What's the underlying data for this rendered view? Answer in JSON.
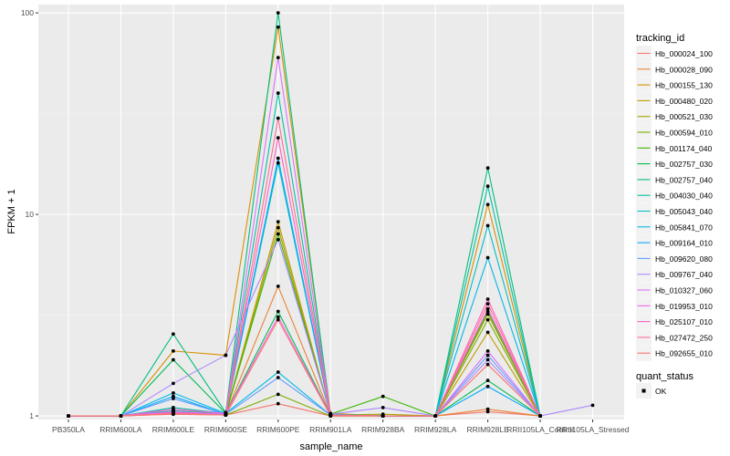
{
  "chart_data": {
    "type": "line",
    "xlabel": "sample_name",
    "ylabel": "FPKM + 1",
    "y_scale": "log10",
    "ylim": [
      0.96,
      110
    ],
    "y_ticks": [
      1,
      10,
      100
    ],
    "y_tick_labels": [
      "1",
      "10",
      "100"
    ],
    "grid": true,
    "legend_placement": "right",
    "categories": [
      "PB350LA",
      "RRIM600LA",
      "RRIM600LE",
      "RRIM600SE",
      "RRIM600PE",
      "RRIM901LA",
      "RRIM928BA",
      "RRIM928LA",
      "RRIM928LE",
      "RRII105LA_Control",
      "RRII105LA_Stressed"
    ],
    "series": [
      {
        "name": "Hb_000024_100",
        "color": "#F8766D",
        "values": [
          1,
          1,
          1.02,
          1.01,
          1.15,
          1,
          1,
          1,
          1.05,
          1,
          null
        ]
      },
      {
        "name": "Hb_000028_090",
        "color": "#EA8331",
        "values": [
          1,
          1,
          1.04,
          1.02,
          4.4,
          1.01,
          1,
          1,
          1.08,
          1,
          null
        ]
      },
      {
        "name": "Hb_000155_130",
        "color": "#D89000",
        "values": [
          1,
          1,
          2.1,
          2.0,
          85,
          1.03,
          1,
          1,
          11.2,
          1,
          null
        ]
      },
      {
        "name": "Hb_000480_020",
        "color": "#C09B00",
        "values": [
          1,
          1,
          1.05,
          1.02,
          9.2,
          1.01,
          1,
          1,
          2.6,
          1,
          null
        ]
      },
      {
        "name": "Hb_000521_030",
        "color": "#A3A500",
        "values": [
          1,
          1,
          1.08,
          1.02,
          8.6,
          1.01,
          1.02,
          1,
          3.2,
          1,
          null
        ]
      },
      {
        "name": "Hb_000594_010",
        "color": "#7CAE00",
        "values": [
          1,
          1,
          1.03,
          1.01,
          1.28,
          1,
          1,
          1,
          3.0,
          1,
          null
        ]
      },
      {
        "name": "Hb_001174_040",
        "color": "#39B600",
        "values": [
          1,
          1,
          1.06,
          1.02,
          8.0,
          1.02,
          1.25,
          1,
          3.3,
          1,
          null
        ]
      },
      {
        "name": "Hb_002757_030",
        "color": "#00BB4E",
        "values": [
          1,
          1,
          1.9,
          1.03,
          3.3,
          1.01,
          1,
          1,
          1.5,
          1,
          null
        ]
      },
      {
        "name": "Hb_002757_040",
        "color": "#00BF7D",
        "values": [
          1,
          1,
          2.55,
          1.04,
          100,
          1.01,
          1,
          1,
          17.0,
          1,
          null
        ]
      },
      {
        "name": "Hb_004030_040",
        "color": "#00C1A3",
        "values": [
          1,
          1,
          1.1,
          1.03,
          40,
          1.02,
          1,
          1,
          13.8,
          1,
          null
        ]
      },
      {
        "name": "Hb_005043_040",
        "color": "#00BFC4",
        "values": [
          1,
          1,
          1.06,
          1.02,
          18,
          1.01,
          1,
          1,
          8.8,
          1,
          null
        ]
      },
      {
        "name": "Hb_005841_070",
        "color": "#00B8E7",
        "values": [
          1,
          1,
          1.3,
          1.03,
          1.65,
          1.01,
          1,
          1,
          6.1,
          1,
          null
        ]
      },
      {
        "name": "Hb_009164_010",
        "color": "#00A9FF",
        "values": [
          1,
          1,
          1.25,
          1.02,
          19,
          1.01,
          1,
          1,
          1.4,
          1,
          null
        ]
      },
      {
        "name": "Hb_009620_080",
        "color": "#619CFF",
        "values": [
          1,
          1,
          1.22,
          1.02,
          1.55,
          1.01,
          1,
          1,
          2.0,
          1,
          null
        ]
      },
      {
        "name": "Hb_009767_040",
        "color": "#AE87FF",
        "values": [
          1,
          1,
          1.45,
          2.0,
          7.5,
          1.02,
          1.1,
          1,
          1.9,
          1,
          1.13
        ]
      },
      {
        "name": "Hb_010327_060",
        "color": "#DB72FB",
        "values": [
          1,
          1,
          1.05,
          1.02,
          60,
          1.01,
          1,
          1,
          2.1,
          1,
          null
        ]
      },
      {
        "name": "Hb_019953_010",
        "color": "#F564E3",
        "values": [
          1,
          1,
          1.08,
          1.03,
          3.1,
          1.01,
          1,
          1,
          3.4,
          1,
          null
        ]
      },
      {
        "name": "Hb_025107_010",
        "color": "#FF61C3",
        "values": [
          1,
          1,
          1.04,
          1.01,
          24,
          1.01,
          1,
          1,
          3.8,
          1,
          null
        ]
      },
      {
        "name": "Hb_027472_250",
        "color": "#FF6C91",
        "values": [
          1,
          1,
          1.03,
          1.01,
          30,
          1.01,
          1,
          1,
          3.6,
          1,
          null
        ]
      },
      {
        "name": "Hb_092655_010",
        "color": "#F8766D",
        "values": [
          1,
          1,
          1.02,
          1.01,
          3.0,
          1,
          1,
          1,
          1.8,
          1,
          null
        ]
      }
    ],
    "legend_title": "tracking_id",
    "legend2_title": "quant_status",
    "legend2_items": [
      "OK"
    ]
  }
}
